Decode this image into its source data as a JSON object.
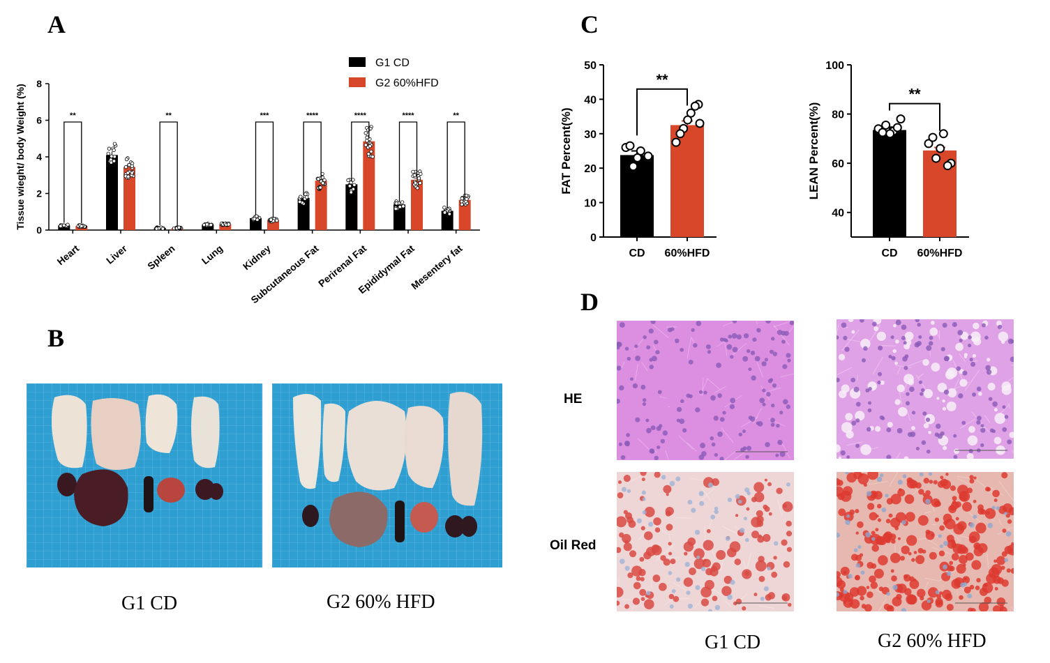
{
  "panels": {
    "A": "A",
    "B": "B",
    "C": "C",
    "D": "D"
  },
  "chart_data": [
    {
      "type": "bar",
      "ylabel": "Tissue wieght/ body Weight (%)",
      "ylim": [
        0,
        8
      ],
      "yticks": [
        "0",
        "2",
        "4",
        "6",
        "8"
      ],
      "categories": [
        "Heart",
        "Liver",
        "Spleen",
        "Lung",
        "Kidney",
        "Subcutaneous Fat",
        "Perirenal Fat",
        "Epididymal Fat",
        "Mesentery fat"
      ],
      "series": [
        {
          "name": "G1 CD",
          "color": "#000000",
          "values": [
            0.25,
            4.1,
            0.12,
            0.3,
            0.65,
            1.75,
            2.5,
            1.4,
            1.05
          ]
        },
        {
          "name": "G2 60%HFD",
          "color": "#d9472b",
          "values": [
            0.22,
            3.45,
            0.1,
            0.32,
            0.55,
            2.7,
            4.85,
            2.75,
            1.65
          ]
        }
      ],
      "significance": [
        "**",
        "",
        "**",
        "",
        "***",
        "****",
        "****",
        "****",
        "**"
      ],
      "legend_position": "top-right"
    },
    {
      "type": "bar",
      "ylabel": "FAT Percent(%)",
      "ylim": [
        0,
        50
      ],
      "yticks": [
        "0",
        "10",
        "20",
        "30",
        "40",
        "50"
      ],
      "categories": [
        "CD",
        "60%HFD"
      ],
      "values": [
        23.8,
        32.5
      ],
      "colors": [
        "#000000",
        "#d9472b"
      ],
      "points": [
        [
          26,
          20.5,
          25,
          23.5,
          26.5,
          23
        ],
        [
          27.5,
          31.5,
          36,
          38.5,
          30,
          34,
          38,
          33
        ]
      ],
      "significance": "**"
    },
    {
      "type": "bar",
      "ylabel": "LEAN Percent(%)",
      "ylim": [
        30,
        100
      ],
      "yticks": [
        "40",
        "60",
        "80",
        "100"
      ],
      "categories": [
        "CD",
        "60%HFD"
      ],
      "values": [
        73.5,
        65.2
      ],
      "colors": [
        "#000000",
        "#d9472b"
      ],
      "points": [
        [
          74,
          75.5,
          73,
          78,
          72.5,
          72,
          74.5
        ],
        [
          68,
          62,
          72,
          60,
          70.5,
          66,
          59
        ]
      ],
      "significance": "**"
    }
  ],
  "photo_captions": {
    "cd": "G1 CD",
    "hfd": "G2 60% HFD"
  },
  "histology": {
    "row_he": "HE",
    "row_oil": "Oil Red",
    "col_cd": "G1 CD",
    "col_hfd": "G2 60% HFD"
  }
}
